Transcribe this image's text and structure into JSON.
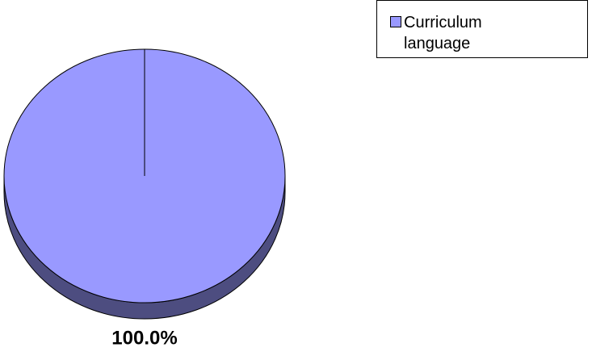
{
  "chart_data": {
    "type": "pie",
    "categories": [
      "Curriculum language"
    ],
    "values": [
      100
    ],
    "value_labels": [
      "100.0%"
    ],
    "colors": [
      "#9999ff"
    ],
    "legend": "top-right"
  }
}
